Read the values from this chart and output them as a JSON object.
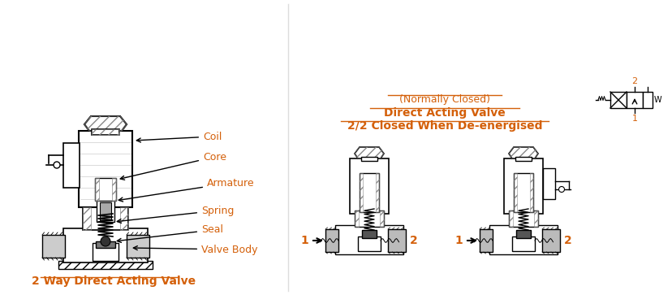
{
  "title_left": "2 Way Direct Acting Valve",
  "title_right_line1": "2/2 Closed When De-energised",
  "title_right_line2": "Direct Acting Valve",
  "title_right_line3": "(Normally Closed)",
  "bg_color": "#ffffff",
  "line_color": "#000000",
  "gray_color": "#b0b0b0",
  "label_color": "#d4600a",
  "labels": [
    "Coil",
    "Core",
    "Armature",
    "Spring",
    "Seal",
    "Valve Body"
  ]
}
